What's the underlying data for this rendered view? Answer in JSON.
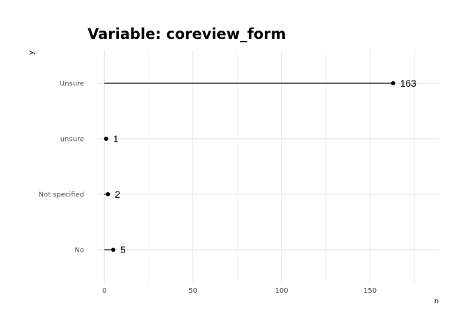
{
  "chart_data": {
    "type": "lollipop",
    "title": "Variable: coreview_form",
    "xlabel": "n",
    "ylabel": "y",
    "categories": [
      "No",
      "Not specified",
      "unsure",
      "Unsure"
    ],
    "values": [
      5,
      2,
      1,
      163
    ],
    "xlim": [
      -4,
      189
    ],
    "xticks": [
      0,
      50,
      100,
      150
    ],
    "grid": true,
    "legend": "none"
  }
}
